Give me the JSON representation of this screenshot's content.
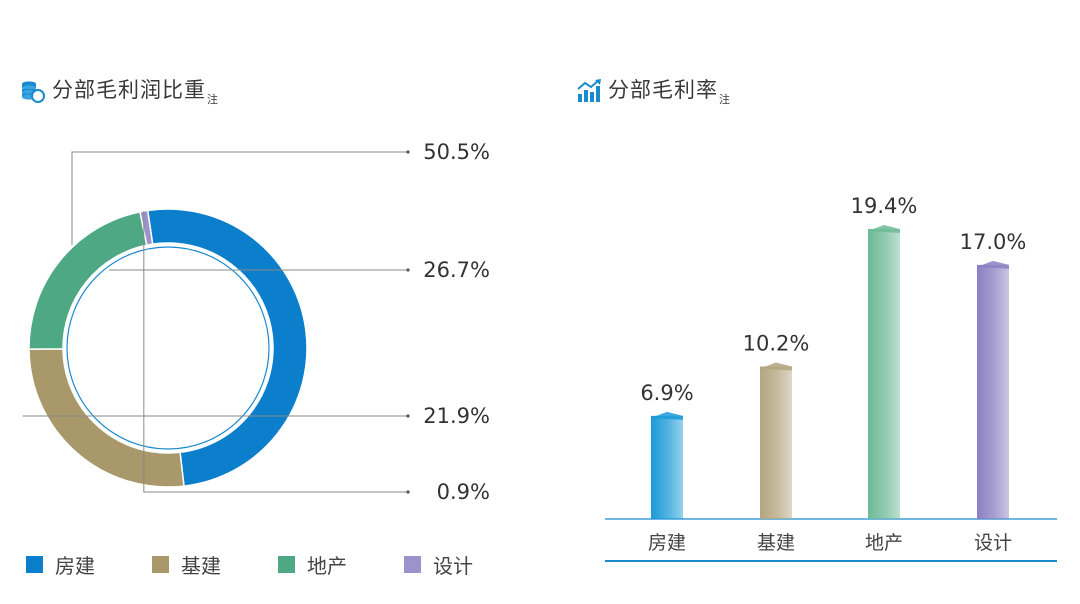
{
  "left_panel": {
    "title": "分部毛利润比重",
    "note": "注"
  },
  "right_panel": {
    "title": "分部毛利率",
    "note": "注"
  },
  "legend": [
    {
      "label": "房建",
      "color": "#0b7fcc"
    },
    {
      "label": "基建",
      "color": "#a8986a"
    },
    {
      "label": "地产",
      "color": "#4da883"
    },
    {
      "label": "设计",
      "color": "#9c93cc"
    }
  ],
  "chart_data": [
    {
      "type": "pie",
      "title": "分部毛利润比重",
      "categories": [
        "房建",
        "基建",
        "地产",
        "设计"
      ],
      "values": [
        50.5,
        26.7,
        21.9,
        0.9
      ],
      "labels": [
        "50.5%",
        "26.7%",
        "21.9%",
        "0.9%"
      ],
      "colors": [
        "#0b7fcc",
        "#a8986a",
        "#4da883",
        "#9c93cc"
      ],
      "legend": "bottom"
    },
    {
      "type": "bar",
      "title": "分部毛利率",
      "categories": [
        "房建",
        "基建",
        "地产",
        "设计"
      ],
      "values": [
        6.9,
        10.2,
        19.4,
        17.0
      ],
      "labels": [
        "6.9%",
        "10.2%",
        "19.4%",
        "17.0%"
      ],
      "colors": [
        "#1a9ad8",
        "#b3a57f",
        "#6dba98",
        "#8a80c2"
      ],
      "ylim": [
        0,
        20
      ]
    }
  ]
}
